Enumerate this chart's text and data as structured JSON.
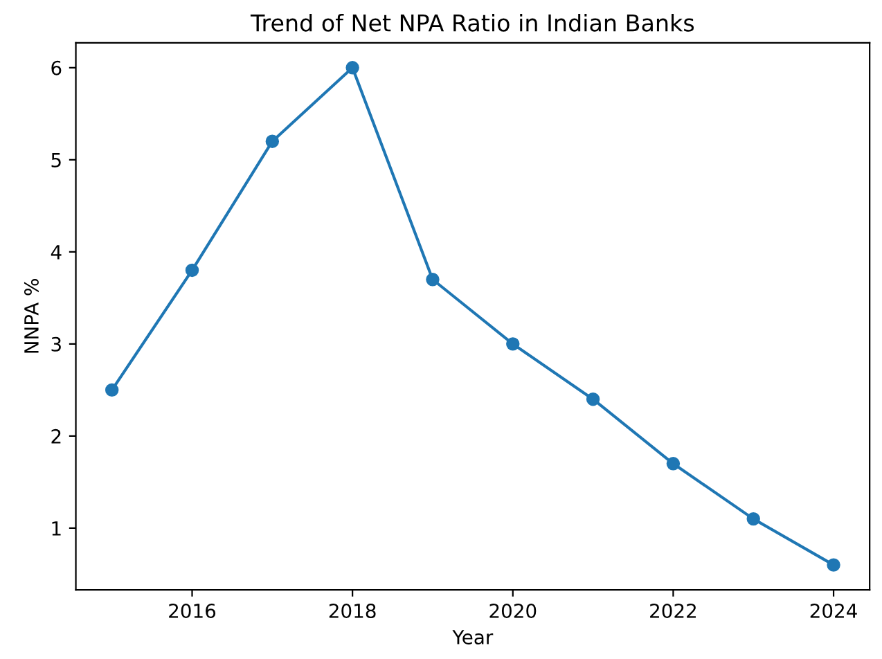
{
  "chart_data": {
    "type": "line",
    "title": "Trend of Net NPA Ratio in Indian Banks",
    "xlabel": "Year",
    "ylabel": "NNPA %",
    "x": [
      2015,
      2016,
      2017,
      2018,
      2019,
      2020,
      2021,
      2022,
      2023,
      2024
    ],
    "series": [
      {
        "color": "#1f77b4",
        "values": [
          2.5,
          3.8,
          5.2,
          6.0,
          3.7,
          3.0,
          2.4,
          1.7,
          1.1,
          0.6
        ]
      }
    ],
    "xlim": [
      2014.55,
      2024.45
    ],
    "xticks": [
      2016,
      2018,
      2020,
      2022,
      2024
    ],
    "ylim": [
      0.33,
      6.27
    ],
    "yticks": [
      1,
      2,
      3,
      4,
      5,
      6
    ],
    "marker": "circle",
    "line_style": "solid",
    "grid": false,
    "legend": false
  }
}
